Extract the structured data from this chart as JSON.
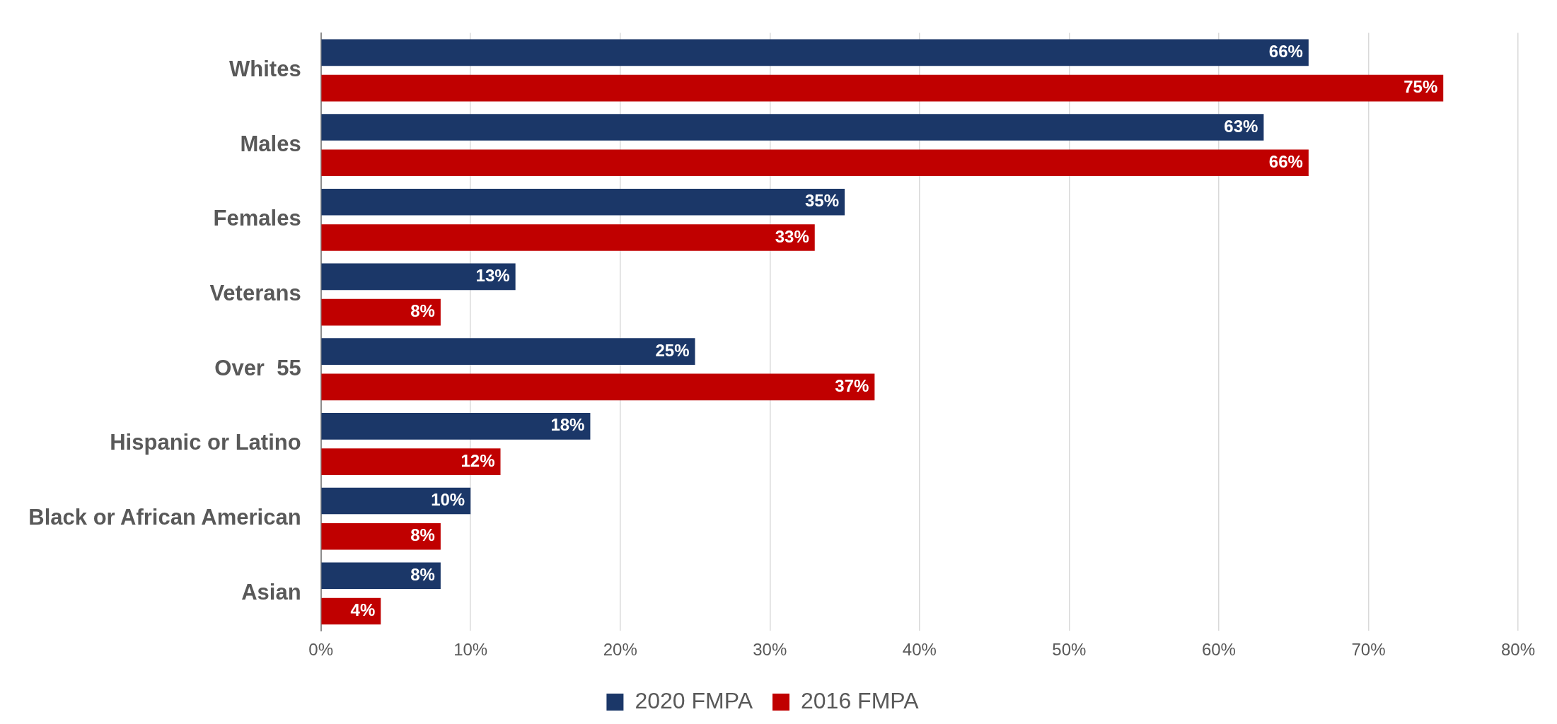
{
  "chart_data": {
    "type": "bar",
    "orientation": "horizontal",
    "categories": [
      "Whites",
      "Males",
      "Females",
      "Veterans",
      "Over  55",
      "Hispanic or Latino",
      "Black or African American",
      "Asian"
    ],
    "series": [
      {
        "name": "2020 FMPA",
        "color": "#1b3768",
        "values": [
          66,
          63,
          35,
          13,
          25,
          18,
          10,
          8
        ],
        "value_labels": [
          "66%",
          "63%",
          "35%",
          "13%",
          "25%",
          "18%",
          "10%",
          "8%"
        ]
      },
      {
        "name": "2016 FMPA",
        "color": "#c00000",
        "values": [
          75,
          66,
          33,
          8,
          37,
          12,
          8,
          4
        ],
        "value_labels": [
          "75%",
          "66%",
          "33%",
          "8%",
          "37%",
          "12%",
          "8%",
          "4%"
        ]
      }
    ],
    "xlim": [
      0,
      80
    ],
    "xticks": [
      {
        "value": 0,
        "label": "0%"
      },
      {
        "value": 10,
        "label": "10%"
      },
      {
        "value": 20,
        "label": "20%"
      },
      {
        "value": 30,
        "label": "30%"
      },
      {
        "value": 40,
        "label": "40%"
      },
      {
        "value": 50,
        "label": "50%"
      },
      {
        "value": 60,
        "label": "60%"
      },
      {
        "value": 70,
        "label": "70%"
      },
      {
        "value": 80,
        "label": "80%"
      }
    ],
    "grid": "x",
    "legend": "bottom"
  }
}
